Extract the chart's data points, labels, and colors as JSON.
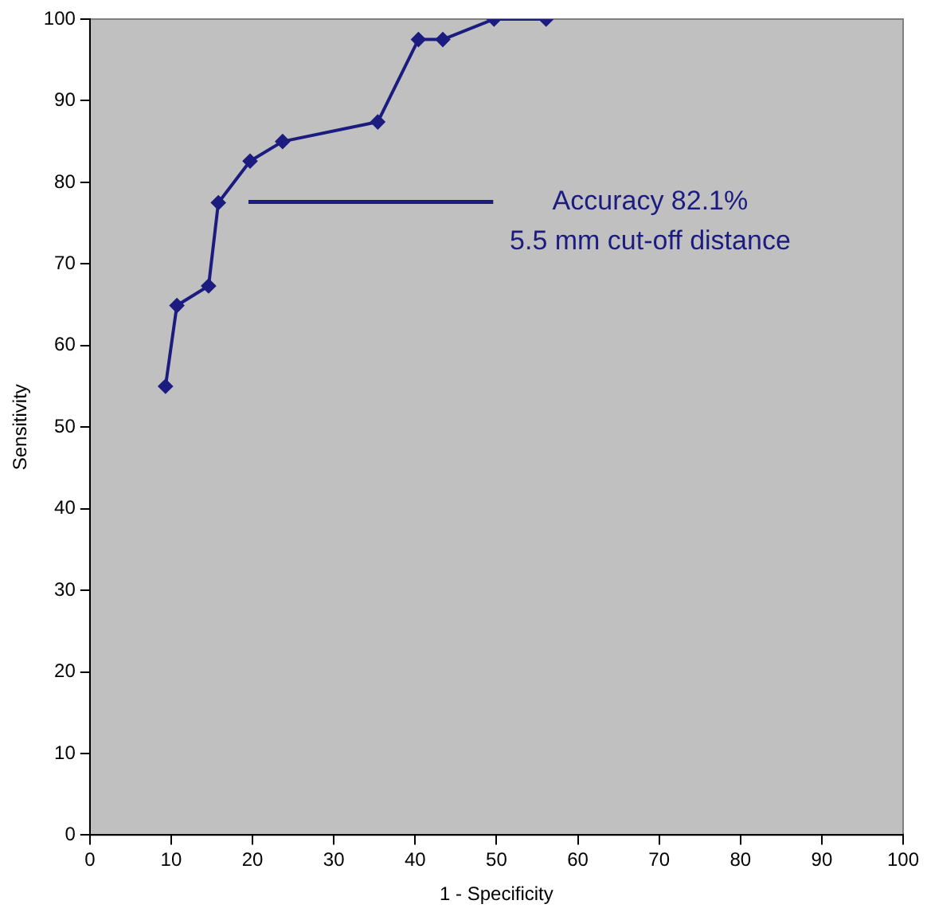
{
  "chart_data": {
    "type": "line",
    "xlabel": "1 - Specificity",
    "ylabel": "Sensitivity",
    "x": [
      9.3,
      10.7,
      14.6,
      15.8,
      19.7,
      23.7,
      35.4,
      40.4,
      43.4,
      49.7,
      56.1
    ],
    "series": [
      {
        "color": "#1c1c80",
        "values": [
          55,
          64.9,
          67.3,
          77.5,
          82.6,
          85,
          87.4,
          97.5,
          97.5,
          100,
          100
        ]
      }
    ],
    "xlim": [
      0,
      100
    ],
    "xticks": [
      0,
      10,
      20,
      30,
      40,
      50,
      60,
      70,
      80,
      90,
      100
    ],
    "ylim": [
      0,
      100
    ],
    "yticks": [
      0,
      10,
      20,
      30,
      40,
      50,
      60,
      70,
      80,
      90,
      100
    ],
    "grid": false,
    "legend": false,
    "marker": "diamond",
    "line_style": "solid",
    "annotations": [
      "Accuracy 82.1%",
      "5.5 mm cut-off distance"
    ]
  }
}
